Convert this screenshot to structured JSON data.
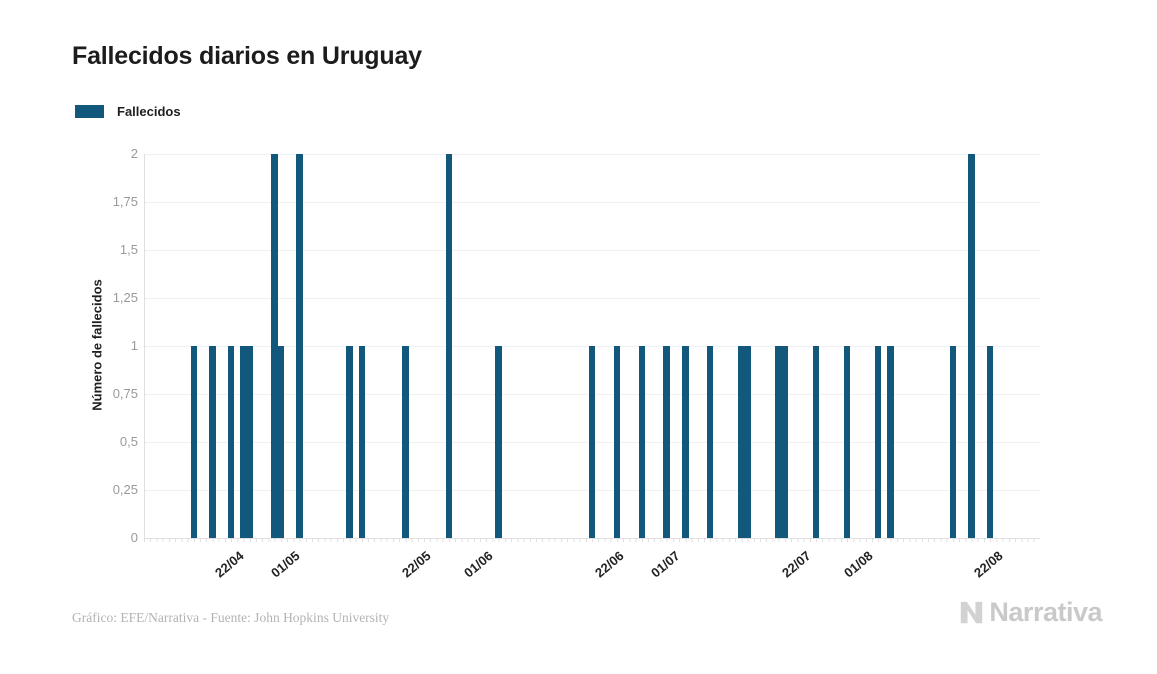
{
  "title": "Fallecidos diarios en Uruguay",
  "legend": {
    "items": [
      {
        "label": "Fallecidos",
        "color": "#12587c"
      }
    ]
  },
  "footer": {
    "credit": "Gráfico: EFE/Narrativa - Fuente: John Hopkins University",
    "brand": "Narrativa"
  },
  "colors": {
    "bar": "#12587c",
    "grid": "#f0f0f0",
    "axis": "#e0e0e0",
    "minor_tick": "#d9d9d9",
    "y_tick_text": "#9a9a9a",
    "x_tick_text": "#222222",
    "title_text": "#1c1c1c",
    "footer_text": "#b3b3b3",
    "brand_gray": "#c9c9c9"
  },
  "chart_data": {
    "type": "bar",
    "title": "Fallecidos diarios en Uruguay",
    "xlabel": "",
    "ylabel": "Número de fallecidos",
    "series_name": "Fallecidos",
    "ylim": [
      0,
      2
    ],
    "grid": true,
    "legend_position": "top-left",
    "y_ticks": [
      {
        "label": "2",
        "value": 2
      },
      {
        "label": "1,75",
        "value": 1.75
      },
      {
        "label": "1,5",
        "value": 1.5
      },
      {
        "label": "1,25",
        "value": 1.25
      },
      {
        "label": "1",
        "value": 1
      },
      {
        "label": "0,75",
        "value": 0.75
      },
      {
        "label": "0,5",
        "value": 0.5
      },
      {
        "label": "0,25",
        "value": 0.25
      },
      {
        "label": "0",
        "value": 0
      }
    ],
    "x_ticks": [
      "22/04",
      "01/05",
      "22/05",
      "01/06",
      "22/06",
      "01/07",
      "22/07",
      "01/08",
      "22/08"
    ],
    "x_domain": {
      "start": "07/04",
      "end": "28/08",
      "days": 144
    },
    "points": [
      {
        "date": "15/04",
        "value": 1
      },
      {
        "date": "18/04",
        "value": 1
      },
      {
        "date": "21/04",
        "value": 1
      },
      {
        "date": "23/04",
        "value": 1
      },
      {
        "date": "24/04",
        "value": 1
      },
      {
        "date": "28/04",
        "value": 2
      },
      {
        "date": "29/04",
        "value": 1
      },
      {
        "date": "02/05",
        "value": 2
      },
      {
        "date": "10/05",
        "value": 1
      },
      {
        "date": "12/05",
        "value": 1
      },
      {
        "date": "19/05",
        "value": 1
      },
      {
        "date": "26/05",
        "value": 2
      },
      {
        "date": "03/06",
        "value": 1
      },
      {
        "date": "18/06",
        "value": 1
      },
      {
        "date": "22/06",
        "value": 1
      },
      {
        "date": "26/06",
        "value": 1
      },
      {
        "date": "30/06",
        "value": 1
      },
      {
        "date": "03/07",
        "value": 1
      },
      {
        "date": "07/07",
        "value": 1
      },
      {
        "date": "12/07",
        "value": 1
      },
      {
        "date": "13/07",
        "value": 1
      },
      {
        "date": "18/07",
        "value": 1
      },
      {
        "date": "19/07",
        "value": 1
      },
      {
        "date": "24/07",
        "value": 1
      },
      {
        "date": "29/07",
        "value": 1
      },
      {
        "date": "03/08",
        "value": 1
      },
      {
        "date": "05/08",
        "value": 1
      },
      {
        "date": "15/08",
        "value": 1
      },
      {
        "date": "18/08",
        "value": 2
      },
      {
        "date": "21/08",
        "value": 1
      }
    ]
  }
}
